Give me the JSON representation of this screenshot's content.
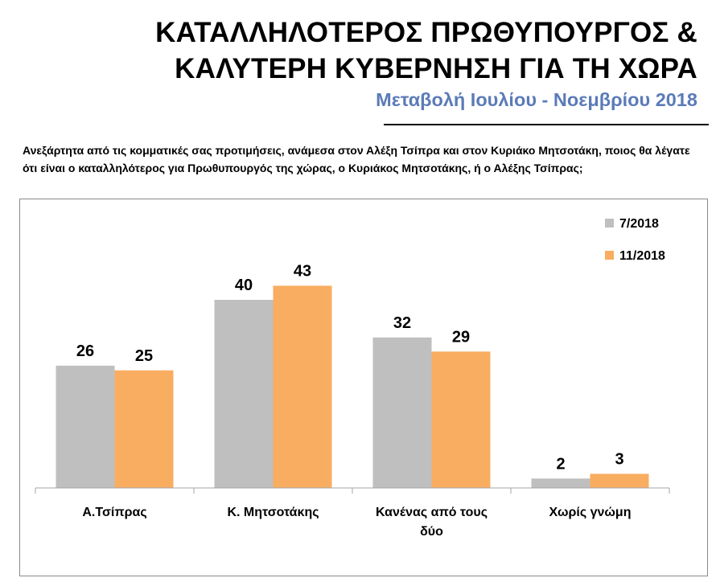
{
  "header": {
    "title_line1": "ΚΑΤΑΛΛΗΛΟΤΕΡΟΣ ΠΡΩΘΥΠΟΥΡΓΟΣ &",
    "title_line2": "ΚΑΛΥΤΕΡΗ ΚΥΒΕΡΝΗΣΗ ΓΙΑ ΤΗ ΧΩΡΑ",
    "subtitle": "Μεταβολή Ιουλίου - Νοεμβρίου 2018",
    "question": "Ανεξάρτητα από τις κομματικές σας προτιμήσεις, ανάμεσα στον Αλέξη Τσίπρα και στον Κυριάκο Μητσοτάκη, ποιος θα λέγατε ότι είναι ο καταλληλότερος για Πρωθυπουργός της χώρας, ο Κυριάκος Μητσοτάκης, ή ο Αλέξης Τσίπρας;"
  },
  "chart_data": {
    "type": "bar",
    "categories": [
      [
        "Α.Τσίπρας"
      ],
      [
        "Κ. Μητσοτάκης"
      ],
      [
        "Κανένας από τους",
        "δύο"
      ],
      [
        "Χωρίς γνώμη"
      ]
    ],
    "series": [
      {
        "name": "7/2018",
        "values": [
          26,
          40,
          32,
          2
        ],
        "color": "#bfbfbf"
      },
      {
        "name": "11/2018",
        "values": [
          25,
          43,
          29,
          3
        ],
        "color": "#f9ad60"
      }
    ],
    "ylim": [
      0,
      50
    ],
    "legend_position": "top-right",
    "axis_color": "#a6a6a6"
  }
}
